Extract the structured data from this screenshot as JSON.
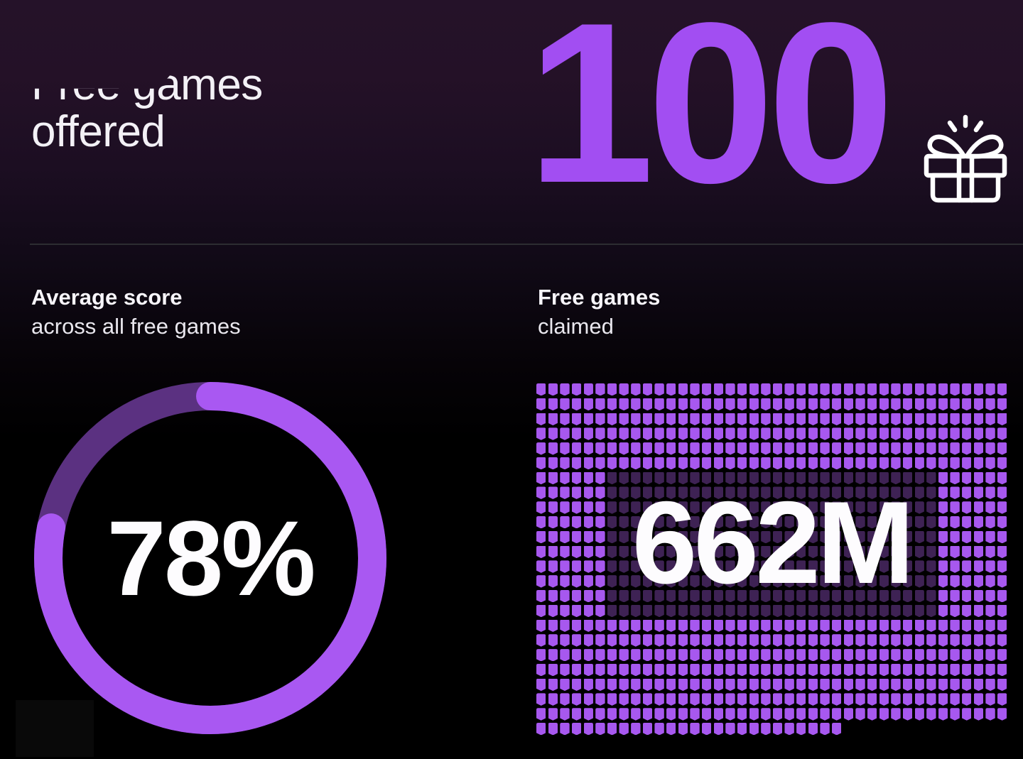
{
  "header": {
    "title_line1": "Free games",
    "title_line2": "offered",
    "value": "100",
    "icon": "gift-icon"
  },
  "left_panel": {
    "label_bold": "Average score",
    "label_rest": "across all free games",
    "value_label": "78%"
  },
  "right_panel": {
    "label_bold": "Free games",
    "label_rest": "claimed",
    "value_label": "662M"
  },
  "colors": {
    "accent_purple": "#a24ef2",
    "ring_arc": "#a958f2",
    "ring_track": "#5b3181",
    "cell_bright": "#a758ef",
    "cell_dim": "#3e2254",
    "text_white": "#f3f1f6",
    "divider": "#2d2d31",
    "background_top": "#251229",
    "background_bottom": "#000000"
  },
  "chart_data": [
    {
      "type": "pie",
      "variant": "donut-progress",
      "title": "Average score across all free games",
      "value": 78,
      "max": 100,
      "unit": "%",
      "center_label": "78%",
      "arc_color": "#a958f2",
      "track_color": "#5b3181",
      "start_angle_deg": 0,
      "direction": "clockwise",
      "stroke_width": 40,
      "rounded_caps": true
    },
    {
      "type": "heatmap",
      "variant": "pictograph-unit-grid",
      "title": "Free games claimed",
      "value_label": "662M",
      "value": 662000000,
      "unit_shape": "badge-tag",
      "grid": {
        "cols": 40,
        "full_rows": 23,
        "last_row_cells": 26,
        "total_cells": 946,
        "dim_region": {
          "row_start": 6,
          "row_end": 15,
          "col_start": 6,
          "col_end": 33
        }
      }
    }
  ]
}
